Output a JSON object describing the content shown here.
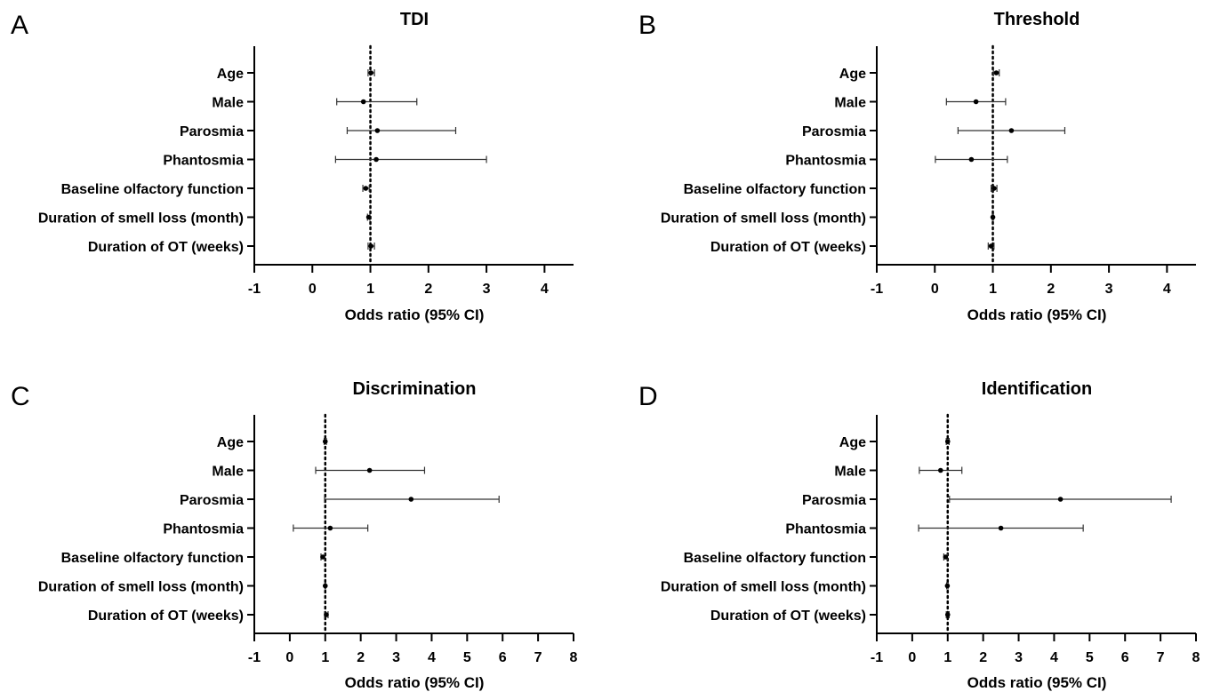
{
  "chart_data": [
    {
      "panel": "A",
      "type": "forest",
      "title": "TDI",
      "xlabel": "Odds ratio (95% CI)",
      "xlim": [
        -1,
        4.5
      ],
      "xticks": [
        -1,
        0,
        1,
        2,
        3,
        4
      ],
      "reference_line": 1,
      "categories": [
        "Age",
        "Male",
        "Parosmia",
        "Phantosmia",
        "Baseline olfactory function",
        "Duration of smell loss (month)",
        "Duration of OT (weeks)"
      ],
      "or": [
        1.01,
        0.88,
        1.12,
        1.1,
        0.92,
        0.97,
        1.01
      ],
      "ci_low": [
        0.96,
        0.42,
        0.6,
        0.4,
        0.87,
        0.95,
        0.96
      ],
      "ci_high": [
        1.07,
        1.8,
        2.47,
        3.0,
        0.98,
        0.99,
        1.07
      ]
    },
    {
      "panel": "B",
      "type": "forest",
      "title": "Threshold",
      "xlabel": "Odds ratio (95% CI)",
      "xlim": [
        -1,
        4.5
      ],
      "xticks": [
        -1,
        0,
        1,
        2,
        3,
        4
      ],
      "reference_line": 1,
      "categories": [
        "Age",
        "Male",
        "Parosmia",
        "Phantosmia",
        "Baseline olfactory function",
        "Duration of smell loss (month)",
        "Duration of OT (weeks)"
      ],
      "or": [
        1.06,
        0.71,
        1.32,
        0.63,
        1.02,
        1.0,
        0.97
      ],
      "ci_low": [
        1.01,
        0.2,
        0.4,
        0.01,
        0.97,
        0.99,
        0.92
      ],
      "ci_high": [
        1.11,
        1.22,
        2.24,
        1.25,
        1.07,
        1.01,
        1.02
      ]
    },
    {
      "panel": "C",
      "type": "forest",
      "title": "Discrimination",
      "xlabel": "Odds ratio (95% CI)",
      "xlim": [
        -1,
        8
      ],
      "xticks": [
        -1,
        0,
        1,
        2,
        3,
        4,
        5,
        6,
        7,
        8
      ],
      "reference_line": 1,
      "categories": [
        "Age",
        "Male",
        "Parosmia",
        "Phantosmia",
        "Baseline olfactory function",
        "Duration of smell loss (month)",
        "Duration of OT (weeks)"
      ],
      "or": [
        1.0,
        2.25,
        3.42,
        1.14,
        0.93,
        1.0,
        1.03
      ],
      "ci_low": [
        0.97,
        0.73,
        0.98,
        0.1,
        0.88,
        0.99,
        0.98
      ],
      "ci_high": [
        1.03,
        3.8,
        5.9,
        2.2,
        0.98,
        1.01,
        1.08
      ]
    },
    {
      "panel": "D",
      "type": "forest",
      "title": "Identification",
      "xlabel": "Odds ratio (95% CI)",
      "xlim": [
        -1,
        8
      ],
      "xticks": [
        -1,
        0,
        1,
        2,
        3,
        4,
        5,
        6,
        7,
        8
      ],
      "reference_line": 1,
      "categories": [
        "Age",
        "Male",
        "Parosmia",
        "Phantosmia",
        "Baseline olfactory function",
        "Duration of smell loss (month)",
        "Duration of OT (weeks)"
      ],
      "or": [
        1.0,
        0.8,
        4.18,
        2.5,
        0.94,
        0.99,
        1.0
      ],
      "ci_low": [
        0.96,
        0.2,
        1.05,
        0.18,
        0.89,
        0.97,
        0.96
      ],
      "ci_high": [
        1.04,
        1.4,
        7.3,
        4.82,
        0.99,
        1.01,
        1.04
      ]
    }
  ]
}
